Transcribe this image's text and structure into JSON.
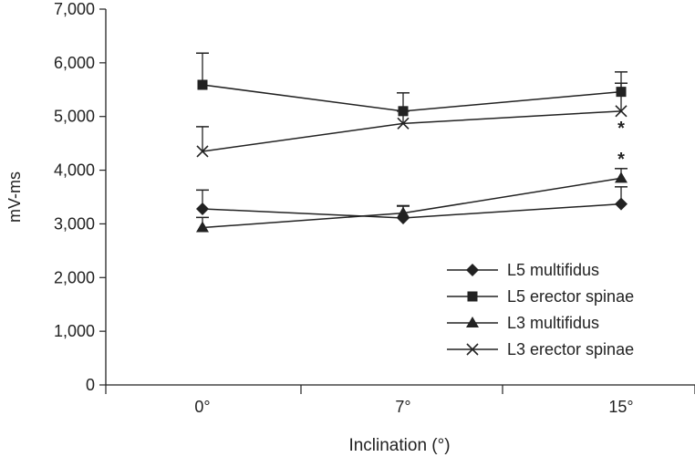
{
  "chart_data": {
    "type": "line",
    "title": "",
    "xlabel": "Inclination (°)",
    "ylabel": "mV-ms",
    "categories": [
      "0°",
      "7°",
      "15°"
    ],
    "ylim": [
      0,
      7000
    ],
    "yticks": [
      "0",
      "1,000",
      "2,000",
      "3,000",
      "4,000",
      "5,000",
      "6,000",
      "7,000"
    ],
    "grid": false,
    "legend_position": "bottom-right",
    "series": [
      {
        "name": "L5 multifidus",
        "marker": "diamond",
        "values": [
          3280,
          3110,
          3370
        ],
        "error_upper": [
          3630,
          3330,
          3690
        ]
      },
      {
        "name": "L5 erector spinae",
        "marker": "square",
        "values": [
          5590,
          5100,
          5460
        ],
        "error_upper": [
          6180,
          5440,
          5830
        ]
      },
      {
        "name": "L3 multifidus",
        "marker": "triangle",
        "values": [
          2930,
          3200,
          3850
        ],
        "error_upper": [
          3120,
          3340,
          4030
        ]
      },
      {
        "name": "L3 erector spinae",
        "marker": "x",
        "values": [
          4350,
          4870,
          5100
        ],
        "error_upper": [
          4810,
          5100,
          5620
        ]
      }
    ],
    "annotations": [
      {
        "text": "*",
        "category": "15°",
        "series": "L3 erector spinae",
        "position": "below"
      },
      {
        "text": "*",
        "category": "15°",
        "series": "L3 multifidus",
        "position": "above"
      }
    ]
  }
}
